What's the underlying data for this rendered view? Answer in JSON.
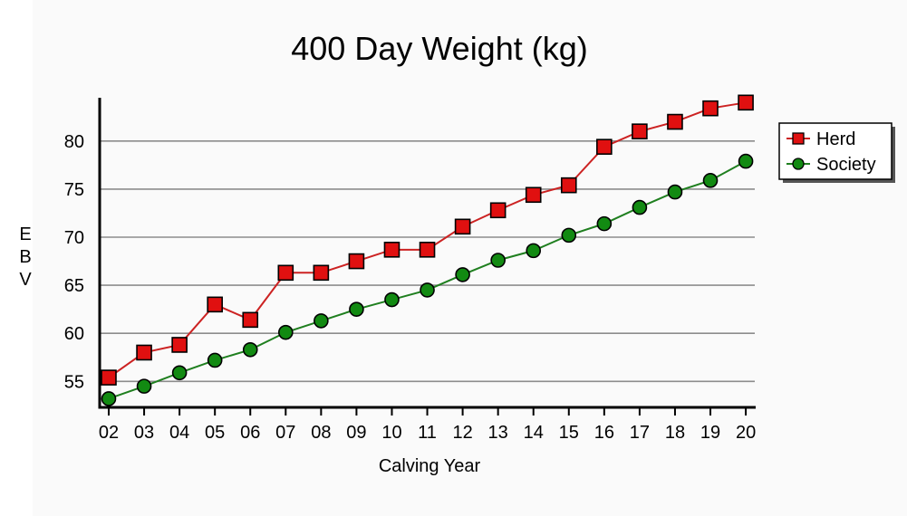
{
  "chart_data": {
    "type": "line",
    "title": "400 Day Weight (kg)",
    "xlabel": "Calving Year",
    "ylabel": "EBV",
    "categories": [
      "02",
      "03",
      "04",
      "05",
      "06",
      "07",
      "08",
      "09",
      "10",
      "11",
      "12",
      "13",
      "14",
      "15",
      "16",
      "17",
      "18",
      "19",
      "20"
    ],
    "yticks": [
      55,
      60,
      65,
      70,
      75,
      80
    ],
    "ylim": [
      52.3,
      84.5
    ],
    "grid": true,
    "legend_position": "right",
    "series": [
      {
        "name": "Herd",
        "marker": "square",
        "color": "#e01010",
        "line_color": "#cc2222",
        "values": [
          55.4,
          58.0,
          58.8,
          63.0,
          61.4,
          66.3,
          66.3,
          67.5,
          68.7,
          68.7,
          71.1,
          72.8,
          74.4,
          75.4,
          79.4,
          81.0,
          82.0,
          83.4,
          84.0
        ]
      },
      {
        "name": "Society",
        "marker": "circle",
        "color": "#128a12",
        "line_color": "#1f7f1f",
        "values": [
          53.2,
          54.5,
          55.9,
          57.2,
          58.3,
          60.1,
          61.3,
          62.5,
          63.5,
          64.5,
          66.1,
          67.6,
          68.6,
          70.2,
          71.4,
          73.1,
          74.7,
          75.9,
          77.9
        ]
      }
    ]
  }
}
